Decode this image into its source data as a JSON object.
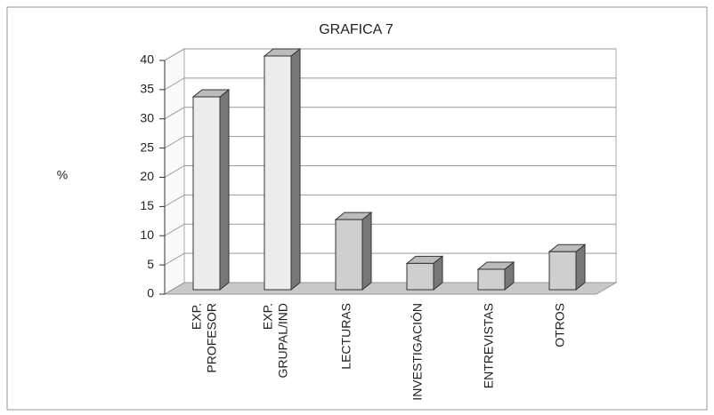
{
  "chart_data": {
    "type": "bar3d",
    "title": "GRAFICA 7",
    "y_label": "%",
    "categories": [
      "EXP. PROFESOR",
      "EXP. GRUPAL/IND",
      "LECTURAS",
      "INVESTIGACIÓN",
      "ENTREVISTAS",
      "OTROS"
    ],
    "values": [
      33,
      40,
      12,
      4.5,
      3.5,
      6.5
    ],
    "colors": [
      "#ececec",
      "#ececec",
      "#cfcfcf",
      "#cfcfcf",
      "#cfcfcf",
      "#cfcfcf"
    ],
    "ylim": [
      0,
      40
    ],
    "yticks": [
      0,
      5,
      10,
      15,
      20,
      25,
      30,
      35,
      40
    ],
    "grid": true
  }
}
